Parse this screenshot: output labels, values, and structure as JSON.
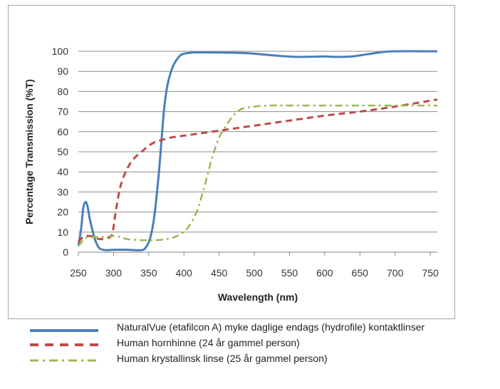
{
  "chart_data": {
    "type": "line",
    "title": "",
    "xlabel": "Wavelength (nm)",
    "ylabel": "Percentage Transmission (%T)",
    "xlim": [
      250,
      760
    ],
    "ylim": [
      0,
      100
    ],
    "x_ticks": [
      250,
      300,
      350,
      400,
      450,
      500,
      550,
      600,
      650,
      700,
      750
    ],
    "y_ticks": [
      0,
      10,
      20,
      30,
      40,
      50,
      60,
      70,
      80,
      90,
      100
    ],
    "grid": "horizontal",
    "legend_placement": "below",
    "series": [
      {
        "name": "NaturalVue (etafilcon A) myke daglige endags (hydrofile) kontaktlinser",
        "color": "#4a7ebb",
        "style": "solid",
        "points": [
          [
            250,
            3
          ],
          [
            254,
            12
          ],
          [
            257,
            22
          ],
          [
            260,
            25
          ],
          [
            263,
            23
          ],
          [
            266,
            17
          ],
          [
            270,
            11
          ],
          [
            275,
            5
          ],
          [
            280,
            2
          ],
          [
            285,
            1.2
          ],
          [
            290,
            1
          ],
          [
            300,
            1.2
          ],
          [
            320,
            1.2
          ],
          [
            338,
            1
          ],
          [
            345,
            2
          ],
          [
            352,
            7
          ],
          [
            358,
            18
          ],
          [
            364,
            38
          ],
          [
            368,
            55
          ],
          [
            372,
            72
          ],
          [
            376,
            82
          ],
          [
            380,
            88
          ],
          [
            385,
            93
          ],
          [
            390,
            96
          ],
          [
            395,
            98
          ],
          [
            400,
            98.8
          ],
          [
            410,
            99.3
          ],
          [
            420,
            99.5
          ],
          [
            450,
            99.4
          ],
          [
            480,
            99.2
          ],
          [
            500,
            98.8
          ],
          [
            520,
            98.2
          ],
          [
            540,
            97.6
          ],
          [
            560,
            97.2
          ],
          [
            580,
            97.3
          ],
          [
            600,
            97.4
          ],
          [
            620,
            97.2
          ],
          [
            640,
            97.5
          ],
          [
            660,
            98.5
          ],
          [
            680,
            99.5
          ],
          [
            700,
            100
          ],
          [
            760,
            100
          ]
        ]
      },
      {
        "name": "Human hornhinne (24 år gammel person)",
        "color": "#be4b48",
        "style": "dashed",
        "points": [
          [
            250,
            5
          ],
          [
            255,
            7
          ],
          [
            260,
            8
          ],
          [
            268,
            8
          ],
          [
            275,
            7
          ],
          [
            282,
            6.5
          ],
          [
            290,
            7
          ],
          [
            298,
            9
          ],
          [
            303,
            20
          ],
          [
            310,
            33
          ],
          [
            320,
            42
          ],
          [
            330,
            47
          ],
          [
            340,
            50
          ],
          [
            350,
            53
          ],
          [
            360,
            55
          ],
          [
            370,
            56
          ],
          [
            380,
            57
          ],
          [
            400,
            58
          ],
          [
            450,
            60.5
          ],
          [
            500,
            63
          ],
          [
            550,
            65.5
          ],
          [
            600,
            68
          ],
          [
            650,
            70
          ],
          [
            700,
            72.5
          ],
          [
            760,
            76
          ]
        ]
      },
      {
        "name": "Human krystallinsk linse (25 år gammel person)",
        "color": "#98b954",
        "style": "dash-dot",
        "points": [
          [
            250,
            3
          ],
          [
            260,
            7
          ],
          [
            270,
            7.5
          ],
          [
            280,
            7.5
          ],
          [
            290,
            7.8
          ],
          [
            300,
            8
          ],
          [
            310,
            7.5
          ],
          [
            320,
            6.5
          ],
          [
            340,
            6
          ],
          [
            360,
            6
          ],
          [
            375,
            6.5
          ],
          [
            390,
            8
          ],
          [
            405,
            12
          ],
          [
            418,
            20
          ],
          [
            430,
            34
          ],
          [
            440,
            47
          ],
          [
            450,
            57
          ],
          [
            460,
            63
          ],
          [
            470,
            68
          ],
          [
            480,
            71
          ],
          [
            490,
            72
          ],
          [
            500,
            72.5
          ],
          [
            520,
            73
          ],
          [
            560,
            73
          ],
          [
            600,
            73
          ],
          [
            650,
            73
          ],
          [
            700,
            73
          ],
          [
            760,
            73
          ]
        ]
      }
    ]
  }
}
